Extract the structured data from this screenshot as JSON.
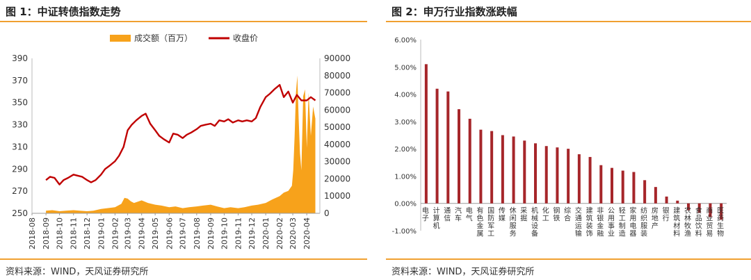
{
  "figures": [
    {
      "title": "图 1：中证转债指数走势",
      "source": "资料来源：WIND，天风证券研究所"
    },
    {
      "title": "图 2：申万行业指数涨跌幅",
      "source": "资料来源：WIND，天风证券研究所"
    }
  ],
  "colors": {
    "accent_rule": "#f0a030",
    "volume": "#f7a21b",
    "close": "#c00000",
    "bar": "#a6262a"
  },
  "chart_data": [
    {
      "type": "line",
      "legend": {
        "position": "top",
        "items": [
          "成交额（百万）",
          "收盘价"
        ]
      },
      "x_ticks": [
        "2018-08",
        "2018-09",
        "2018-10",
        "2018-11",
        "2018-12",
        "2019-01",
        "2019-02",
        "2019-03",
        "2019-04",
        "2019-05",
        "2019-06",
        "2019-07",
        "2019-08",
        "2019-09",
        "2019-10",
        "2019-11",
        "2019-12",
        "2020-01",
        "2020-02",
        "2020-03",
        "2020-04"
      ],
      "y_left": {
        "lim": [
          250,
          390
        ],
        "ticks": [
          250,
          270,
          290,
          310,
          330,
          350,
          370,
          390
        ]
      },
      "y_right": {
        "lim": [
          0,
          90000
        ],
        "ticks": [
          0,
          10000,
          20000,
          30000,
          40000,
          50000,
          60000,
          70000,
          80000,
          90000
        ]
      },
      "grid": false,
      "series": [
        {
          "name": "成交额（百万）",
          "axis": "right",
          "type": "area",
          "x": [
            "2018-09-01",
            "2018-09-15",
            "2018-10-01",
            "2018-10-15",
            "2018-11-01",
            "2018-11-15",
            "2018-12-01",
            "2018-12-15",
            "2019-01-01",
            "2019-01-15",
            "2019-02-01",
            "2019-02-15",
            "2019-02-22",
            "2019-03-01",
            "2019-03-08",
            "2019-03-15",
            "2019-04-01",
            "2019-04-15",
            "2019-05-01",
            "2019-05-15",
            "2019-06-01",
            "2019-06-15",
            "2019-07-01",
            "2019-07-15",
            "2019-08-01",
            "2019-08-15",
            "2019-09-01",
            "2019-09-15",
            "2019-10-01",
            "2019-10-15",
            "2019-11-01",
            "2019-11-15",
            "2019-12-01",
            "2019-12-15",
            "2020-01-01",
            "2020-01-15",
            "2020-02-01",
            "2020-02-10",
            "2020-02-20",
            "2020-02-28",
            "2020-03-02",
            "2020-03-05",
            "2020-03-08",
            "2020-03-11",
            "2020-03-14",
            "2020-03-17",
            "2020-03-20",
            "2020-03-24",
            "2020-03-28",
            "2020-04-01",
            "2020-04-05",
            "2020-04-10",
            "2020-04-15",
            "2020-04-20"
          ],
          "values": [
            1500,
            1800,
            1200,
            1500,
            1800,
            1500,
            1200,
            1500,
            2500,
            3000,
            3500,
            5500,
            9000,
            8500,
            7000,
            6000,
            7500,
            6000,
            5000,
            4500,
            3500,
            4000,
            3000,
            3500,
            4000,
            4500,
            5000,
            4000,
            3000,
            3500,
            3000,
            3500,
            4500,
            5000,
            6000,
            8000,
            10000,
            12000,
            13000,
            16000,
            25000,
            45000,
            70000,
            80000,
            55000,
            35000,
            25000,
            68000,
            72000,
            38000,
            70000,
            45000,
            62000,
            55000
          ]
        },
        {
          "name": "收盘价",
          "axis": "left",
          "type": "line",
          "x": [
            "2018-09-01",
            "2018-09-10",
            "2018-09-20",
            "2018-10-01",
            "2018-10-10",
            "2018-10-20",
            "2018-11-01",
            "2018-11-10",
            "2018-11-20",
            "2018-12-01",
            "2018-12-10",
            "2018-12-20",
            "2019-01-01",
            "2019-01-10",
            "2019-01-20",
            "2019-02-01",
            "2019-02-10",
            "2019-02-20",
            "2019-03-01",
            "2019-03-10",
            "2019-03-20",
            "2019-04-01",
            "2019-04-10",
            "2019-04-20",
            "2019-05-01",
            "2019-05-10",
            "2019-05-20",
            "2019-06-01",
            "2019-06-10",
            "2019-06-20",
            "2019-07-01",
            "2019-07-10",
            "2019-07-20",
            "2019-08-01",
            "2019-08-10",
            "2019-08-20",
            "2019-09-01",
            "2019-09-10",
            "2019-09-20",
            "2019-10-01",
            "2019-10-10",
            "2019-10-20",
            "2019-11-01",
            "2019-11-10",
            "2019-11-20",
            "2019-12-01",
            "2019-12-10",
            "2019-12-20",
            "2020-01-01",
            "2020-01-10",
            "2020-01-20",
            "2020-02-01",
            "2020-02-10",
            "2020-02-20",
            "2020-03-01",
            "2020-03-10",
            "2020-03-20",
            "2020-04-01",
            "2020-04-10",
            "2020-04-20"
          ],
          "values": [
            280,
            283,
            282,
            276,
            280,
            282,
            285,
            284,
            283,
            280,
            278,
            280,
            285,
            290,
            293,
            297,
            302,
            310,
            325,
            330,
            334,
            338,
            340,
            331,
            325,
            320,
            317,
            314,
            322,
            321,
            318,
            321,
            323,
            326,
            329,
            330,
            331,
            329,
            334,
            333,
            335,
            332,
            334,
            333,
            334,
            333,
            336,
            346,
            355,
            358,
            362,
            366,
            355,
            360,
            350,
            357,
            352,
            352,
            355,
            352
          ]
        }
      ]
    },
    {
      "type": "bar",
      "ylim": [
        -0.01,
        0.06
      ],
      "y_ticks": [
        -0.01,
        0.0,
        0.01,
        0.02,
        0.03,
        0.04,
        0.05,
        0.06
      ],
      "y_tick_labels": [
        "-1.00%",
        "0.00%",
        "1.00%",
        "2.00%",
        "3.00%",
        "4.00%",
        "5.00%",
        "6.00%"
      ],
      "grid": false,
      "categories": [
        "电子",
        "计算机",
        "通信",
        "汽车",
        "电气",
        "有色金属",
        "国防军工",
        "传媒",
        "休闲服务",
        "采掘",
        "机械设备",
        "化工",
        "钢铁",
        "综合",
        "交通运输",
        "建筑装饰",
        "非银金融",
        "公用事业",
        "轻工制造",
        "家用电器",
        "纺织服装",
        "房地产",
        "银行",
        "建筑材料",
        "农林牧渔",
        "食品饮料",
        "商业贸易",
        "医药生物"
      ],
      "values": [
        0.051,
        0.042,
        0.041,
        0.0345,
        0.031,
        0.027,
        0.0265,
        0.025,
        0.0245,
        0.023,
        0.022,
        0.021,
        0.0205,
        0.02,
        0.018,
        0.017,
        0.014,
        0.013,
        0.012,
        0.0115,
        0.0085,
        0.006,
        0.0025,
        0.001,
        -0.0025,
        -0.0035,
        -0.005,
        -0.006
      ]
    }
  ]
}
